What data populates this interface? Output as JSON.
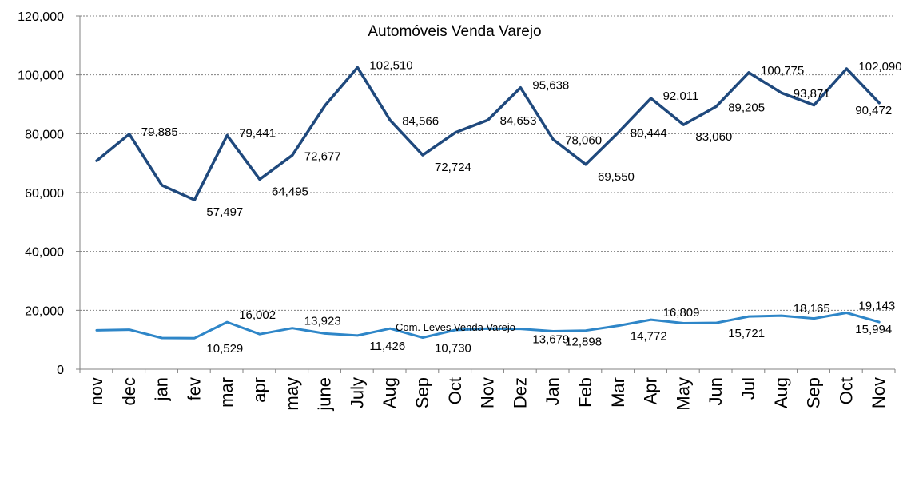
{
  "chart_data": {
    "type": "line",
    "categories": [
      "nov",
      "dec",
      "jan",
      "fev",
      "mar",
      "apr",
      "may",
      "june",
      "July",
      "Aug",
      "Sep",
      "Oct",
      "Nov",
      "Dez",
      "Jan",
      "Feb",
      "Mar",
      "Apr",
      "May",
      "Jun",
      "Jul",
      "Aug",
      "Sep",
      "Oct",
      "Nov"
    ],
    "ylim": [
      0,
      120000
    ],
    "yticks": [
      "0",
      "20,000",
      "40,000",
      "60,000",
      "80,000",
      "100,000",
      "120,000"
    ],
    "grid": true,
    "legend": "none",
    "series": [
      {
        "name": "Automóveis Venda Varejo",
        "color": "#1f497d",
        "values": [
          70800,
          79885,
          62500,
          57497,
          79441,
          64495,
          72677,
          89500,
          102510,
          84566,
          72724,
          80400,
          84653,
          95638,
          78060,
          69550,
          80444,
          92011,
          83060,
          89205,
          100775,
          93871,
          89700,
          102090,
          90472
        ],
        "labels": [
          null,
          "79,885",
          null,
          "57,497",
          "79,441",
          "64,495",
          "72,677",
          null,
          "102,510",
          "84,566",
          "72,724",
          null,
          "84,653",
          "95,638",
          "78,060",
          "69,550",
          "80,444",
          "92,011",
          "83,060",
          "89,205",
          "100,775",
          "93,871",
          null,
          "102,090",
          "90,472"
        ]
      },
      {
        "name": "Com. Leves Venda Varejo",
        "color": "#2e86c8",
        "values": [
          13200,
          13400,
          10600,
          10529,
          16002,
          11900,
          13923,
          12100,
          11426,
          13800,
          10730,
          13300,
          13800,
          13679,
          12898,
          13100,
          14772,
          16809,
          15600,
          15721,
          17900,
          18165,
          17200,
          19143,
          15994
        ],
        "labels": [
          null,
          null,
          null,
          "10,529",
          "16,002",
          null,
          "13,923",
          null,
          "11,426",
          null,
          "10,730",
          null,
          null,
          "13,679",
          "12,898",
          null,
          "14,772",
          "16,809",
          null,
          "15,721",
          null,
          "18,165",
          null,
          "19,143",
          "15,994"
        ]
      }
    ]
  }
}
